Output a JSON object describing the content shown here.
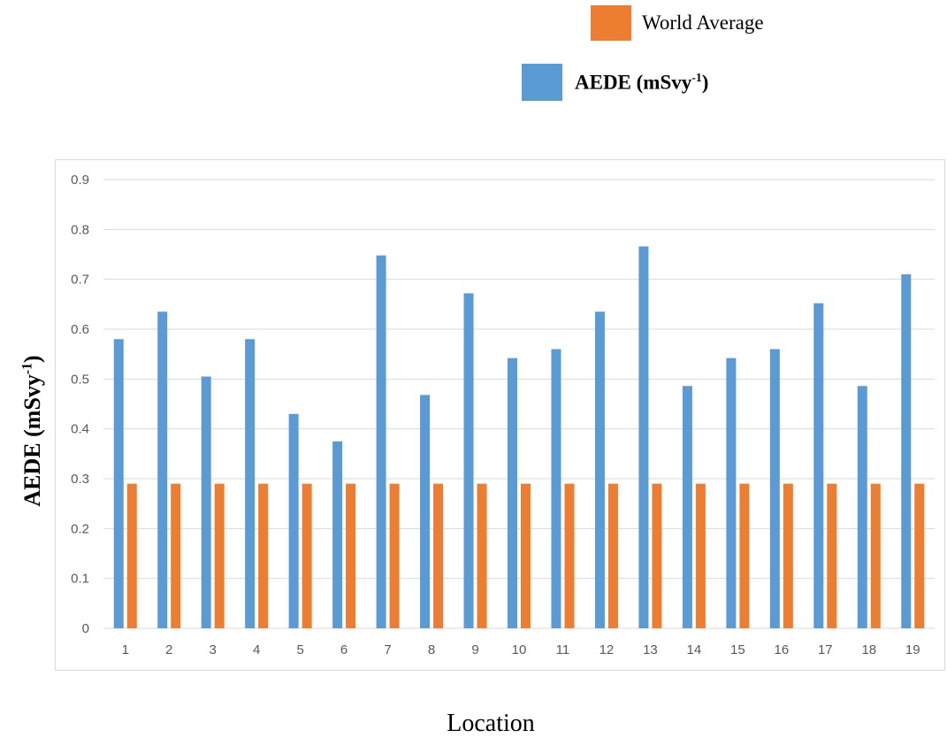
{
  "chart_data": {
    "type": "bar",
    "categories": [
      "1",
      "2",
      "3",
      "4",
      "5",
      "6",
      "7",
      "8",
      "9",
      "10",
      "11",
      "12",
      "13",
      "14",
      "15",
      "16",
      "17",
      "18",
      "19"
    ],
    "series": [
      {
        "name": "AEDE (mSvy-1)",
        "color": "#5b9bd5",
        "values": [
          0.58,
          0.635,
          0.505,
          0.58,
          0.43,
          0.375,
          0.748,
          0.468,
          0.672,
          0.542,
          0.56,
          0.635,
          0.766,
          0.486,
          0.542,
          0.56,
          0.652,
          0.486,
          0.71
        ]
      },
      {
        "name": "World Average",
        "color": "#ed7d31",
        "values": [
          0.29,
          0.29,
          0.29,
          0.29,
          0.29,
          0.29,
          0.29,
          0.29,
          0.29,
          0.29,
          0.29,
          0.29,
          0.29,
          0.29,
          0.29,
          0.29,
          0.29,
          0.29,
          0.29
        ]
      }
    ],
    "xlabel": "Location",
    "ylabel": {
      "main": "AEDE (mSvy",
      "sup": "-1",
      "close": ")"
    },
    "ylim": [
      0,
      0.9
    ],
    "yticks": [
      "0",
      "0.1",
      "0.2",
      "0.3",
      "0.4",
      "0.5",
      "0.6",
      "0.7",
      "0.8",
      "0.9"
    ],
    "grid": true,
    "legend": {
      "position": "top-right",
      "world": "World Average",
      "aede_main": "AEDE (mSvy",
      "aede_sup": "-1",
      "aede_close": ")"
    }
  }
}
